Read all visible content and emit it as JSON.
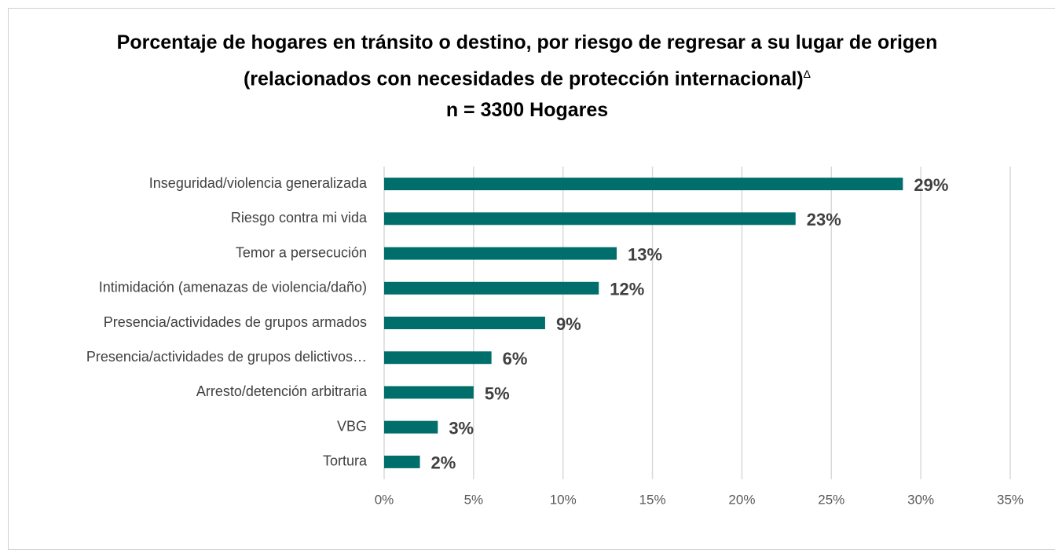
{
  "chart_data": {
    "type": "bar",
    "orientation": "horizontal",
    "title": "Porcentaje de hogares en tránsito o destino, por riesgo de regresar a su lugar de origen (relacionados con necesidades de protección internacional)",
    "title_marker": "Δ",
    "subtitle": "n = 3300 Hogares",
    "categories": [
      "Inseguridad/violencia generalizada",
      "Riesgo contra mi vida",
      "Temor a persecución",
      "Intimidación (amenazas de violencia/daño)",
      "Presencia/actividades de grupos armados",
      "Presencia/actividades de grupos delictivos…",
      "Arresto/detención arbitraria",
      "VBG",
      "Tortura"
    ],
    "values": [
      29,
      23,
      13,
      12,
      9,
      6,
      5,
      3,
      2
    ],
    "value_labels": [
      "29%",
      "23%",
      "13%",
      "12%",
      "9%",
      "6%",
      "5%",
      "3%",
      "2%"
    ],
    "color": "#006e6a",
    "xlim": [
      0,
      35
    ],
    "xticks": [
      {
        "value": 0,
        "label": "0%"
      },
      {
        "value": 5,
        "label": "5%"
      },
      {
        "value": 10,
        "label": "10%"
      },
      {
        "value": 15,
        "label": "15%"
      },
      {
        "value": 20,
        "label": "20%"
      },
      {
        "value": 25,
        "label": "25%"
      },
      {
        "value": 30,
        "label": "30%"
      },
      {
        "value": 35,
        "label": "35%"
      }
    ],
    "grid": true
  }
}
